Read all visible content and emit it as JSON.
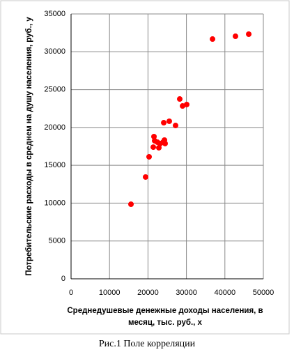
{
  "chart_data": {
    "type": "scatter",
    "ylabel": "Потребительские расходы в среднем на душу населения, руб., у",
    "xlabel": [
      "Среднедушевые денежные доходы населения, в",
      "месяц, тыс. руб., х"
    ],
    "caption": "Рис.1 Поле корреляции",
    "color": "#ff0000",
    "x": [
      15580,
      19380,
      20290,
      21560,
      21380,
      21740,
      22460,
      22830,
      23190,
      23910,
      24280,
      24460,
      24100,
      25540,
      27170,
      28260,
      28990,
      30070,
      36780,
      42750,
      46200
    ],
    "y": [
      9850,
      13450,
      16120,
      18790,
      17400,
      18240,
      18050,
      17320,
      17870,
      18050,
      18330,
      17870,
      20630,
      20820,
      20260,
      23760,
      22840,
      23030,
      31680,
      32050,
      32330
    ],
    "xlim": [
      0,
      50000
    ],
    "xticks": [
      0,
      10000,
      20000,
      30000,
      40000,
      50000
    ],
    "ylim": [
      0,
      35000
    ],
    "yticks": [
      0,
      5000,
      10000,
      15000,
      20000,
      25000,
      30000,
      35000
    ],
    "grid": true
  }
}
